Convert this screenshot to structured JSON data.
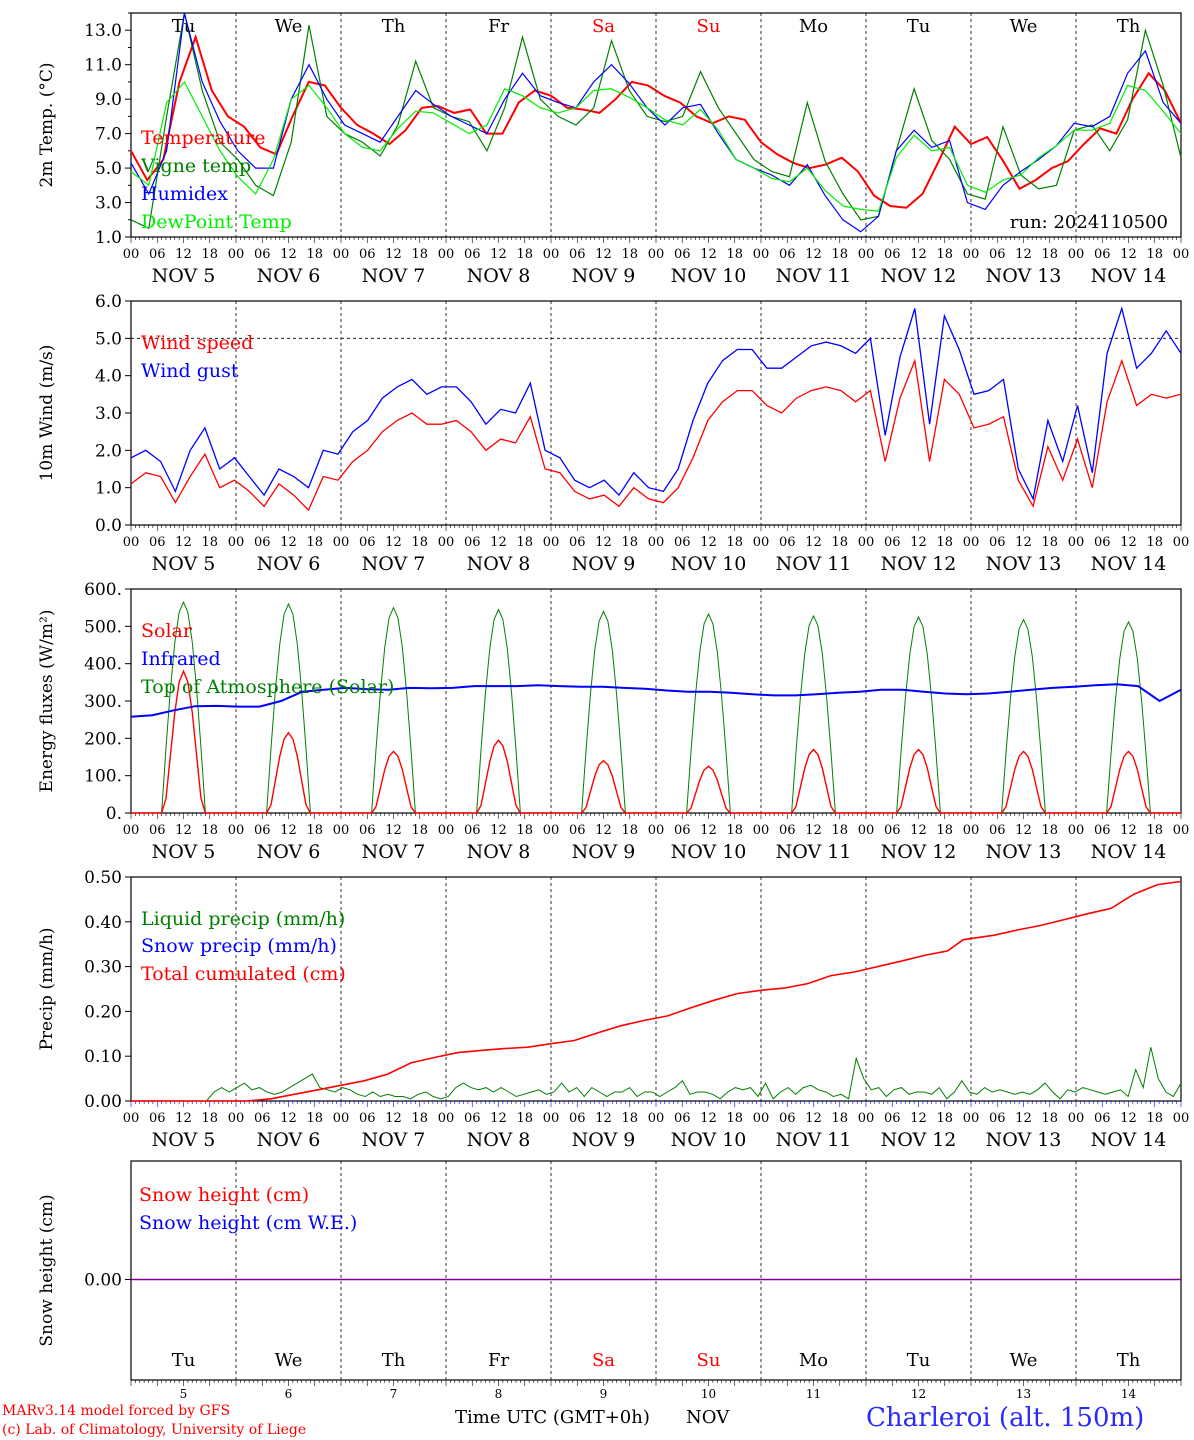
{
  "days": [
    "Tu",
    "We",
    "Th",
    "Fr",
    "Sa",
    "Su",
    "Mo",
    "Tu",
    "We",
    "Th"
  ],
  "weekend_days": [
    "Sa",
    "Su"
  ],
  "dates": [
    "NOV  5",
    "NOV  6",
    "NOV  7",
    "NOV  8",
    "NOV  9",
    "NOV 10",
    "NOV 11",
    "NOV 12",
    "NOV 13",
    "NOV 14"
  ],
  "hour_labels": [
    "00",
    "06",
    "12",
    "18"
  ],
  "bottom_day_numbers": [
    "5",
    "6",
    "7",
    "8",
    "9",
    "10",
    "11",
    "12",
    "13",
    "14"
  ],
  "run_label": "run: 2024110500",
  "xlabel": "Time UTC (GMT+0h)",
  "xlabel_month": "NOV",
  "credit_model": "MARv3.14 model forced by GFS",
  "credit_lab": "(c) Lab. of Climatology, University of Liege",
  "station": "Charleroi (alt. 150m)",
  "colors": {
    "red": "#ff0000",
    "green": "#008000",
    "blue": "#0000ff",
    "lightgreen": "#00ee00",
    "purple": "#8000a0"
  },
  "chart_data": [
    {
      "type": "line",
      "ylabel": "2m Temp. (°C)",
      "ylim": [
        1.0,
        14.0
      ],
      "yticks": [
        1.0,
        3.0,
        5.0,
        7.0,
        9.0,
        11.0,
        13.0
      ],
      "ytick_labels": [
        "1.0",
        "3.0",
        "5.0",
        "7.0",
        "9.0",
        "11.0",
        "13.0"
      ],
      "x_hours": [
        0,
        3,
        6,
        9,
        12,
        15,
        18,
        21,
        24,
        27,
        30,
        33,
        36,
        39,
        42,
        45,
        48,
        51,
        54,
        57,
        60,
        63,
        66,
        69,
        72,
        75,
        78,
        81,
        84,
        87,
        90,
        93,
        96,
        99,
        102,
        105,
        108,
        111,
        114,
        117,
        120,
        123,
        126,
        129,
        132,
        135,
        138,
        141,
        144,
        147,
        150,
        153,
        156,
        159,
        162,
        165,
        168,
        171,
        174,
        177,
        180,
        183,
        186,
        189,
        192,
        195,
        198,
        201,
        204,
        207,
        210,
        213,
        216,
        219,
        222,
        225,
        228,
        231,
        234,
        237,
        240
      ],
      "series": [
        {
          "name": "Temperature",
          "color": "red",
          "values": [
            6.0,
            4.3,
            5.5,
            10.0,
            12.6,
            9.5,
            8.0,
            7.4,
            6.2,
            5.8,
            8.0,
            10.0,
            9.8,
            8.5,
            7.5,
            7.0,
            6.4,
            7.2,
            8.5,
            8.6,
            8.2,
            8.4,
            7.0,
            7.0,
            8.8,
            9.5,
            9.2,
            8.5,
            8.4,
            8.2,
            9.0,
            10.0,
            9.8,
            9.2,
            8.8,
            8.0,
            7.6,
            8.0,
            7.8,
            6.5,
            5.8,
            5.3,
            5.0,
            5.2,
            5.6,
            4.8,
            3.4,
            2.8,
            2.7,
            3.5,
            5.4,
            7.4,
            6.4,
            6.8,
            5.4,
            3.8,
            4.3,
            5.0,
            5.4,
            6.4,
            7.3,
            7.0,
            9.0,
            10.5,
            9.5,
            7.6
          ]
        },
        {
          "name": "Vigne temp",
          "color": "green",
          "values": [
            2.0,
            1.5,
            8.0,
            14.0,
            9.5,
            6.5,
            5.5,
            4.0,
            3.4,
            6.5,
            13.3,
            8.0,
            7.0,
            6.5,
            5.7,
            7.5,
            11.2,
            8.5,
            8.0,
            7.7,
            6.0,
            8.5,
            12.6,
            9.0,
            8.0,
            7.5,
            8.5,
            12.4,
            9.5,
            8.0,
            7.7,
            8.0,
            10.6,
            8.5,
            7.0,
            5.5,
            4.8,
            4.5,
            8.8,
            5.4,
            3.5,
            2.0,
            2.2,
            6.0,
            9.6,
            6.6,
            5.5,
            3.5,
            3.2,
            7.4,
            4.6,
            3.8,
            4.0,
            7.2,
            7.5,
            6.0,
            7.8,
            13.0,
            9.8,
            5.6
          ]
        },
        {
          "name": "Humidex",
          "color": "blue",
          "values": [
            5.3,
            3.5,
            6.0,
            14.0,
            10.0,
            7.7,
            6.0,
            5.0,
            5.0,
            9.0,
            11.0,
            9.0,
            7.5,
            7.0,
            6.5,
            8.0,
            9.5,
            8.7,
            8.0,
            7.5,
            7.0,
            9.0,
            10.5,
            9.2,
            8.8,
            8.5,
            10.0,
            11.0,
            9.9,
            8.5,
            7.5,
            8.5,
            8.7,
            7.0,
            5.5,
            5.0,
            4.6,
            4.0,
            5.2,
            3.4,
            2.0,
            1.3,
            2.2,
            6.0,
            7.2,
            6.2,
            6.6,
            3.0,
            2.6,
            4.0,
            4.8,
            5.5,
            6.3,
            7.6,
            7.4,
            8.0,
            10.5,
            11.8,
            8.8,
            7.6
          ]
        },
        {
          "name": "DewPoint Temp",
          "color": "lightgreen",
          "values": [
            4.8,
            4.0,
            8.8,
            10.0,
            8.0,
            6.0,
            4.5,
            3.5,
            5.5,
            9.0,
            9.8,
            8.5,
            7.0,
            6.2,
            6.0,
            7.3,
            8.3,
            8.2,
            7.6,
            7.0,
            7.5,
            9.6,
            9.2,
            8.5,
            8.2,
            8.5,
            9.5,
            9.6,
            9.1,
            8.5,
            7.8,
            7.5,
            8.4,
            7.2,
            5.5,
            5.0,
            4.4,
            4.2,
            5.0,
            3.7,
            2.8,
            2.6,
            2.5,
            5.6,
            6.9,
            6.0,
            6.2,
            4.0,
            3.6,
            4.3,
            4.6,
            5.6,
            6.3,
            7.2,
            7.2,
            7.6,
            9.8,
            9.5,
            8.3,
            7.0
          ]
        }
      ],
      "legend": [
        "Temperature",
        "Vigne temp",
        "Humidex",
        "DewPoint Temp"
      ],
      "legend_position": "top-left"
    },
    {
      "type": "line",
      "ylabel": "10m Wind (m/s)",
      "ylim": [
        0.0,
        6.0
      ],
      "yticks": [
        0.0,
        1.0,
        2.0,
        3.0,
        4.0,
        5.0,
        6.0
      ],
      "ytick_labels": [
        "0.0",
        "1.0",
        "2.0",
        "3.0",
        "4.0",
        "5.0",
        "6.0"
      ],
      "reference_line": 5.0,
      "series": [
        {
          "name": "Wind speed",
          "color": "red",
          "values": [
            1.1,
            1.4,
            1.3,
            0.6,
            1.3,
            1.9,
            1.0,
            1.2,
            0.9,
            0.5,
            1.1,
            0.8,
            0.4,
            1.3,
            1.2,
            1.7,
            2.0,
            2.5,
            2.8,
            3.0,
            2.7,
            2.7,
            2.8,
            2.5,
            2.0,
            2.3,
            2.2,
            2.9,
            1.5,
            1.4,
            0.9,
            0.7,
            0.8,
            0.5,
            1.0,
            0.7,
            0.6,
            1.0,
            1.8,
            2.8,
            3.3,
            3.6,
            3.6,
            3.2,
            3.0,
            3.4,
            3.6,
            3.7,
            3.6,
            3.3,
            3.6,
            1.7,
            3.4,
            4.4,
            1.7,
            3.9,
            3.5,
            2.6,
            2.7,
            2.9,
            1.2,
            0.5,
            2.1,
            1.2,
            2.3,
            1.0,
            3.3,
            4.4,
            3.2,
            3.5,
            3.4,
            3.5
          ]
        },
        {
          "name": "Wind gust",
          "color": "blue",
          "values": [
            1.8,
            2.0,
            1.7,
            0.9,
            2.0,
            2.6,
            1.5,
            1.8,
            1.3,
            0.8,
            1.5,
            1.3,
            1.0,
            2.0,
            1.9,
            2.5,
            2.8,
            3.4,
            3.7,
            3.9,
            3.5,
            3.7,
            3.7,
            3.3,
            2.7,
            3.1,
            3.0,
            3.8,
            2.0,
            1.8,
            1.2,
            1.0,
            1.2,
            0.8,
            1.4,
            1.0,
            0.9,
            1.5,
            2.8,
            3.8,
            4.4,
            4.7,
            4.7,
            4.2,
            4.2,
            4.5,
            4.8,
            4.9,
            4.8,
            4.6,
            5.0,
            2.4,
            4.5,
            5.8,
            2.7,
            5.6,
            4.7,
            3.5,
            3.6,
            3.9,
            1.5,
            0.7,
            2.8,
            1.7,
            3.2,
            1.4,
            4.6,
            5.8,
            4.2,
            4.6,
            5.2,
            4.6
          ]
        }
      ],
      "legend": [
        "Wind speed",
        "Wind gust"
      ],
      "legend_position": "top-left"
    },
    {
      "type": "line",
      "ylabel": "Energy fluxes (W/m²)",
      "ylim": [
        0,
        600
      ],
      "yticks": [
        0,
        100,
        200,
        300,
        400,
        500,
        600
      ],
      "ytick_labels": [
        "0.",
        "100.",
        "200.",
        "300.",
        "400.",
        "500.",
        "600."
      ],
      "solar_peaks": [
        380,
        215,
        165,
        195,
        140,
        125,
        170,
        170,
        165,
        165
      ],
      "toa_peaks": [
        565,
        560,
        550,
        545,
        540,
        533,
        528,
        525,
        518,
        512
      ],
      "infrared": [
        258,
        262,
        275,
        286,
        287,
        285,
        285,
        300,
        325,
        330,
        335,
        332,
        330,
        335,
        334,
        335,
        340,
        340,
        340,
        342,
        340,
        338,
        338,
        335,
        333,
        328,
        325,
        325,
        322,
        318,
        315,
        315,
        318,
        322,
        325,
        330,
        330,
        325,
        320,
        318,
        320,
        325,
        330,
        335,
        338,
        342,
        345,
        340,
        300,
        330
      ],
      "series_names": [
        "Solar",
        "Infrared",
        "Top of Atmosphere (Solar)"
      ],
      "legend": [
        "Solar",
        "Infrared",
        "Top of Atmosphere (Solar)"
      ],
      "legend_position": "top-left"
    },
    {
      "type": "line",
      "ylabel": "Precip (mm/h)",
      "ylim": [
        0.0,
        0.5
      ],
      "yticks": [
        0.0,
        0.1,
        0.2,
        0.3,
        0.4,
        0.5
      ],
      "ytick_labels": [
        "0.00",
        "0.10",
        "0.20",
        "0.30",
        "0.40",
        "0.50"
      ],
      "series": [
        {
          "name": "Liquid precip (mm/h)",
          "color": "green",
          "values": [
            0,
            0,
            0,
            0,
            0,
            0,
            0,
            0,
            0,
            0,
            0,
            0.02,
            0.03,
            0.02,
            0.03,
            0.04,
            0.025,
            0.03,
            0.02,
            0.015,
            0.02,
            0.03,
            0.04,
            0.05,
            0.06,
            0.03,
            0.025,
            0.02,
            0.03,
            0.025,
            0.015,
            0.01,
            0.02,
            0.01,
            0.015,
            0.01,
            0.01,
            0.005,
            0.015,
            0.02,
            0.01,
            0.005,
            0.01,
            0.03,
            0.04,
            0.03,
            0.025,
            0.03,
            0.02,
            0.03,
            0.02,
            0.01,
            0.015,
            0.02,
            0.025,
            0.015,
            0.02,
            0.04,
            0.02,
            0.03,
            0.01,
            0.03,
            0.02,
            0.01,
            0.02,
            0.02,
            0.03,
            0.01,
            0.02,
            0.02,
            0.01,
            0.02,
            0.03,
            0.045,
            0.015,
            0.02,
            0.02,
            0.015,
            0.005,
            0.02,
            0.03,
            0.025,
            0.03,
            0.01,
            0.04,
            0.005,
            0.02,
            0.03,
            0.015,
            0.03,
            0.035,
            0.025,
            0.02,
            0.01,
            0.015,
            0.005,
            0.095,
            0.05,
            0.025,
            0.03,
            0.01,
            0.025,
            0.03,
            0.015,
            0.02,
            0.02,
            0.015,
            0.03,
            0.005,
            0.02,
            0.045,
            0.02,
            0.015,
            0.03,
            0.02,
            0.025,
            0.02,
            0.015,
            0.02,
            0.015,
            0.025,
            0.04,
            0.02,
            0.005,
            0.025,
            0.02,
            0.03,
            0.025,
            0.02,
            0.015,
            0.02,
            0.025,
            0.01,
            0.07,
            0.03,
            0.12,
            0.05,
            0.02,
            0.01,
            0.04
          ]
        },
        {
          "name": "Snow precip (mm/h)",
          "color": "blue",
          "values": []
        },
        {
          "name": "Total cumulated (cm)",
          "color": "red",
          "cumulative_points": [
            [
              0,
              0
            ],
            [
              6,
              0
            ],
            [
              12,
              0
            ],
            [
              18,
              0
            ],
            [
              24,
              0
            ],
            [
              30,
              0
            ],
            [
              36,
              0.005
            ],
            [
              42,
              0.015
            ],
            [
              48,
              0.025
            ],
            [
              54,
              0.035
            ],
            [
              60,
              0.045
            ],
            [
              66,
              0.06
            ],
            [
              72,
              0.085
            ],
            [
              78,
              0.097
            ],
            [
              84,
              0.108
            ],
            [
              90,
              0.113
            ],
            [
              96,
              0.117
            ],
            [
              102,
              0.12
            ],
            [
              108,
              0.128
            ],
            [
              114,
              0.135
            ],
            [
              120,
              0.152
            ],
            [
              126,
              0.168
            ],
            [
              132,
              0.18
            ],
            [
              138,
              0.19
            ],
            [
              144,
              0.208
            ],
            [
              150,
              0.225
            ],
            [
              156,
              0.24
            ],
            [
              162,
              0.247
            ],
            [
              168,
              0.252
            ],
            [
              174,
              0.262
            ],
            [
              180,
              0.28
            ],
            [
              186,
              0.288
            ],
            [
              192,
              0.3
            ],
            [
              198,
              0.312
            ],
            [
              204,
              0.325
            ],
            [
              210,
              0.335
            ],
            [
              214,
              0.36
            ],
            [
              222,
              0.37
            ],
            [
              228,
              0.382
            ],
            [
              234,
              0.392
            ],
            [
              240,
              0.405
            ],
            [
              246,
              0.418
            ],
            [
              252,
              0.43
            ],
            [
              258,
              0.462
            ],
            [
              264,
              0.483
            ],
            [
              270,
              0.49
            ]
          ]
        }
      ],
      "legend": [
        "Liquid precip (mm/h)",
        "Snow precip (mm/h)",
        "Total cumulated (cm)"
      ],
      "legend_position": "top-left"
    },
    {
      "type": "line",
      "ylabel": "Snow height (cm)",
      "yticks": [
        0.0
      ],
      "ytick_labels": [
        "0.00"
      ],
      "series": [
        {
          "name": "Snow height (cm)",
          "color": "red",
          "values": [
            0,
            0
          ]
        },
        {
          "name": "Snow height (cm W.E.)",
          "color": "blue",
          "values": [
            0,
            0
          ]
        }
      ],
      "legend": [
        "Snow height (cm)",
        "Snow height (cm W.E.)"
      ],
      "legend_position": "top-left"
    }
  ]
}
